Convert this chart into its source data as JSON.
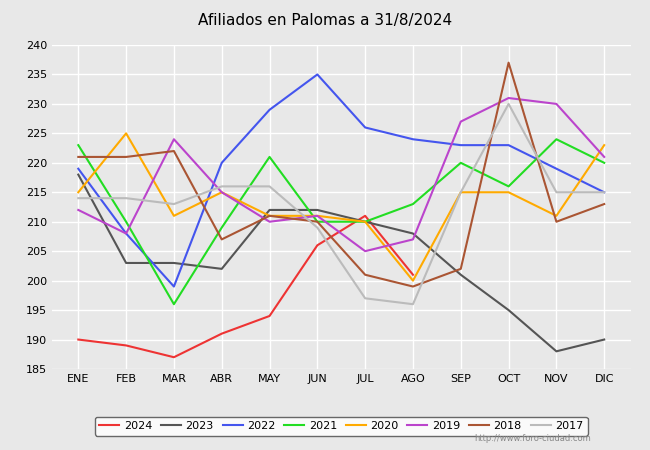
{
  "title": "Afiliados en Palomas a 31/8/2024",
  "ylim": [
    185,
    240
  ],
  "yticks": [
    185,
    190,
    195,
    200,
    205,
    210,
    215,
    220,
    225,
    230,
    235,
    240
  ],
  "months": [
    "ENE",
    "FEB",
    "MAR",
    "ABR",
    "MAY",
    "JUN",
    "JUL",
    "AGO",
    "SEP",
    "OCT",
    "NOV",
    "DIC"
  ],
  "series": [
    {
      "label": "2024",
      "color": "#ee3333",
      "data": [
        190,
        189,
        187,
        191,
        194,
        206,
        211,
        201,
        null,
        null,
        null,
        null
      ]
    },
    {
      "label": "2023",
      "color": "#555555",
      "data": [
        218,
        203,
        203,
        202,
        212,
        212,
        210,
        208,
        201,
        195,
        188,
        190
      ]
    },
    {
      "label": "2022",
      "color": "#4455ee",
      "data": [
        219,
        208,
        199,
        220,
        229,
        235,
        226,
        224,
        223,
        223,
        219,
        215
      ]
    },
    {
      "label": "2021",
      "color": "#22dd22",
      "data": [
        223,
        210,
        196,
        209,
        221,
        210,
        210,
        213,
        220,
        216,
        224,
        220
      ]
    },
    {
      "label": "2020",
      "color": "#ffaa00",
      "data": [
        215,
        225,
        211,
        215,
        211,
        211,
        210,
        200,
        215,
        215,
        211,
        223
      ]
    },
    {
      "label": "2019",
      "color": "#bb44cc",
      "data": [
        212,
        208,
        224,
        215,
        210,
        211,
        205,
        207,
        227,
        231,
        230,
        221
      ]
    },
    {
      "label": "2018",
      "color": "#aa5533",
      "data": [
        221,
        221,
        222,
        207,
        211,
        210,
        201,
        199,
        202,
        237,
        210,
        213
      ]
    },
    {
      "label": "2017",
      "color": "#bbbbbb",
      "data": [
        214,
        214,
        213,
        216,
        216,
        209,
        197,
        196,
        215,
        230,
        215,
        215
      ]
    }
  ],
  "watermark": "http://www.foro-ciudad.com",
  "bg_color": "#e8e8e8",
  "plot_bg_color": "#e8e8e8",
  "grid_color": "#ffffff",
  "title_bar_color": "#5588bb"
}
